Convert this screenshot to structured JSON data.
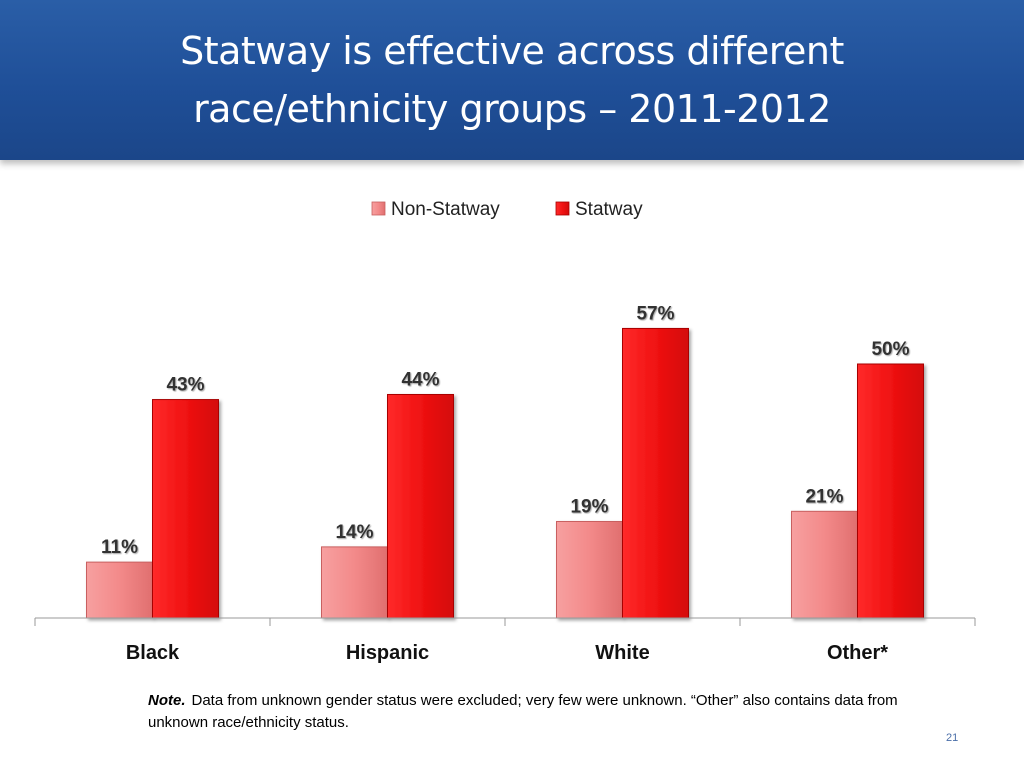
{
  "slide": {
    "title": "Statway is effective across different race/ethnicity groups – 2011-2012",
    "note_lead": "Note.",
    "note_text": "Data from unknown gender status were excluded; very few were unknown. “Other” also contains data from unknown race/ethnicity status.",
    "page_number": "21"
  },
  "colors": {
    "header_bg": "#1f4f98",
    "non_statway": "#f28b8b",
    "statway": "#ee1111"
  },
  "chart_data": {
    "type": "bar",
    "categories": [
      "Black",
      "Hispanic",
      "White",
      "Other*"
    ],
    "series": [
      {
        "name": "Non-Statway",
        "values": [
          11,
          14,
          19,
          21
        ],
        "labels": [
          "11%",
          "14%",
          "19%",
          "21%"
        ]
      },
      {
        "name": "Statway",
        "values": [
          43,
          44,
          57,
          50
        ],
        "labels": [
          "43%",
          "44%",
          "57%",
          "50%"
        ]
      }
    ],
    "ylim": [
      0,
      60
    ],
    "grid": false,
    "legend_position": "top-center"
  }
}
